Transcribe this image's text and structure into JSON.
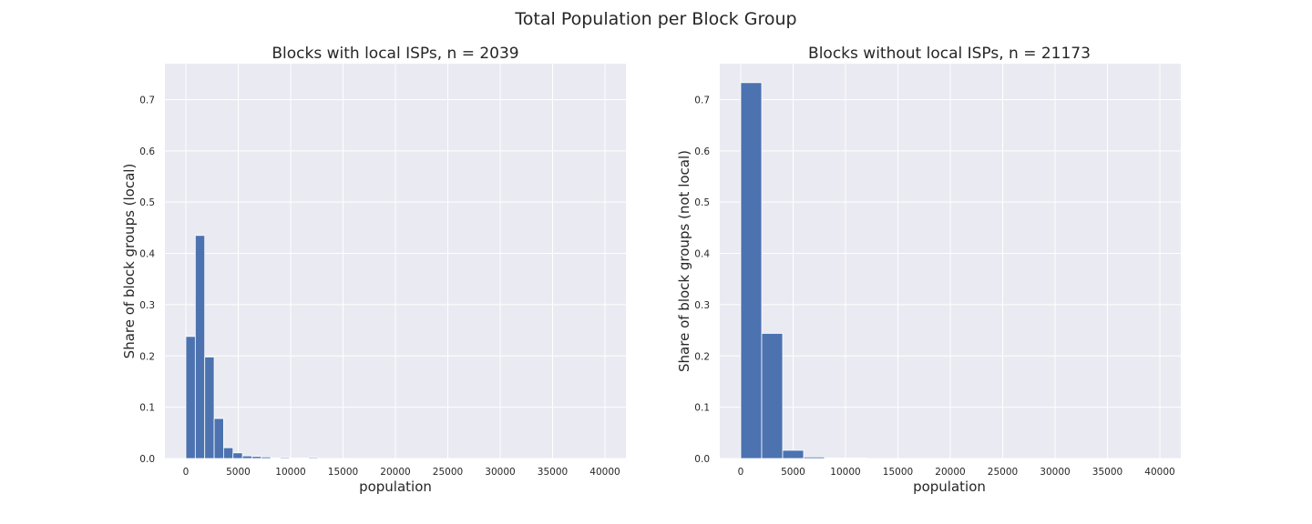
{
  "figure": {
    "title": "Total Population per Block Group"
  },
  "chart_data": [
    {
      "type": "bar",
      "title": "Blocks with local ISPs, n = 2039",
      "xlabel": "population",
      "ylabel": "Share of block groups (local)",
      "xlim": [
        -2000,
        42000
      ],
      "ylim": [
        0,
        0.77
      ],
      "xticks": [
        0,
        5000,
        10000,
        15000,
        20000,
        25000,
        30000,
        35000,
        40000
      ],
      "yticks": [
        0.0,
        0.1,
        0.2,
        0.3,
        0.4,
        0.5,
        0.6,
        0.7
      ],
      "grid": true,
      "bin_width": 900,
      "bin_edges": [
        0,
        900,
        1800,
        2700,
        3600,
        4500,
        5400,
        6300,
        7200,
        8100,
        9000,
        9900,
        10800,
        11700,
        12600
      ],
      "values": [
        0.238,
        0.435,
        0.198,
        0.078,
        0.021,
        0.011,
        0.005,
        0.004,
        0.003,
        0.001,
        0.002,
        0.001,
        0.001,
        0.002
      ],
      "color": "#4c72b0"
    },
    {
      "type": "bar",
      "title": "Blocks without local ISPs, n = 21173",
      "xlabel": "population",
      "ylabel": "Share of block groups (not local)",
      "xlim": [
        -2000,
        42000
      ],
      "ylim": [
        0,
        0.77
      ],
      "xticks": [
        0,
        5000,
        10000,
        15000,
        20000,
        25000,
        30000,
        35000,
        40000
      ],
      "yticks": [
        0.0,
        0.1,
        0.2,
        0.3,
        0.4,
        0.5,
        0.6,
        0.7
      ],
      "grid": true,
      "bin_width": 2000,
      "bin_edges": [
        0,
        2000,
        4000,
        6000,
        8000,
        10000,
        12000
      ],
      "values": [
        0.733,
        0.244,
        0.016,
        0.003,
        0.001,
        0.001
      ],
      "color": "#4c72b0"
    }
  ],
  "style": {
    "axes_bg": "#eaeaf2",
    "grid_color": "#ffffff",
    "text_color": "#262626"
  }
}
